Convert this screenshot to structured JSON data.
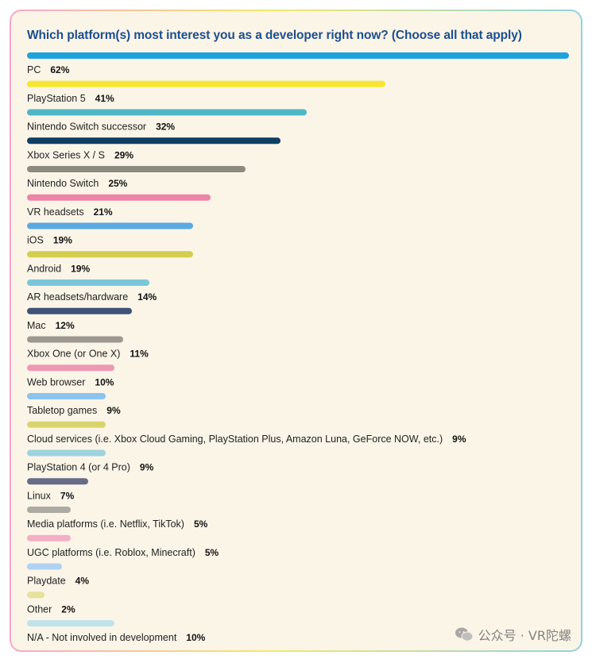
{
  "chart_data": {
    "type": "bar",
    "orientation": "horizontal",
    "title": "Which platform(s) most interest you as a developer right now? (Choose all that apply)",
    "value_suffix": "%",
    "xlim": [
      0,
      62
    ],
    "categories": [
      "PC",
      "PlayStation 5",
      "Nintendo Switch successor",
      "Xbox Series X / S",
      "Nintendo Switch",
      "VR headsets",
      "iOS",
      "Android",
      "AR headsets/hardware",
      "Mac",
      "Xbox One (or One X)",
      "Web browser",
      "Tabletop games",
      "Cloud services (i.e. Xbox Cloud Gaming, PlayStation Plus, Amazon Luna, GeForce NOW, etc.)",
      "PlayStation 4 (or 4 Pro)",
      "Linux",
      "Media platforms (i.e. Netflix, TikTok)",
      "UGC platforms (i.e. Roblox, Minecraft)",
      "Playdate",
      "Other",
      "N/A - Not involved in development"
    ],
    "values": [
      62,
      41,
      32,
      29,
      25,
      21,
      19,
      19,
      14,
      12,
      11,
      10,
      9,
      9,
      9,
      7,
      5,
      5,
      4,
      2,
      10
    ],
    "colors": [
      "#1fa3dc",
      "#f5e731",
      "#4fb8c6",
      "#0e3e63",
      "#8d8b7f",
      "#ec84a6",
      "#5aa9e2",
      "#d4cd4d",
      "#7ac7d9",
      "#3f5278",
      "#9c9890",
      "#ee99b3",
      "#8cc3ef",
      "#d9d46e",
      "#9ed3e0",
      "#676b88",
      "#adaaa3",
      "#f3afc6",
      "#b0d3f3",
      "#e5e29a",
      "#bfe3ec"
    ]
  },
  "watermark": {
    "text": "公众号 · VR陀螺",
    "icon": "wechat-icon"
  }
}
